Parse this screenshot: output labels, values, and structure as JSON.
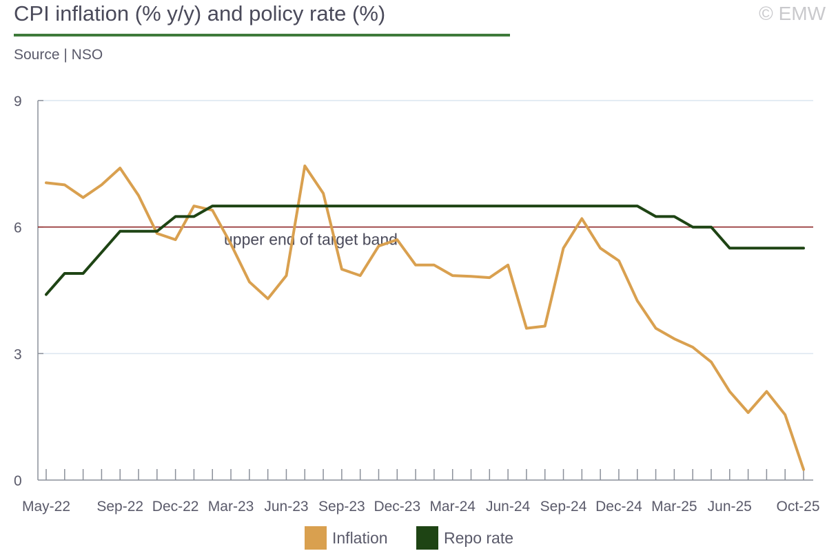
{
  "header": {
    "title": "CPI inflation (% y/y) and policy rate (%)",
    "source": "Source | NSO",
    "copyright": "© EMW"
  },
  "colors": {
    "inflation": "#d9a04f",
    "repo": "#1e4414",
    "target_line": "#8b1a1a",
    "grid": "#dce6f0",
    "axis": "#8a8f99",
    "title_rule": "#3e7a3a"
  },
  "chart_data": {
    "type": "line",
    "title": "CPI inflation (% y/y) and policy rate (%)",
    "xlabel": "",
    "ylabel": "",
    "ylim": [
      0,
      9
    ],
    "yticks": [
      0,
      3,
      6,
      9
    ],
    "grid": true,
    "x": [
      "May-22",
      "Jun-22",
      "Jul-22",
      "Aug-22",
      "Sep-22",
      "Oct-22",
      "Nov-22",
      "Dec-22",
      "Jan-23",
      "Feb-23",
      "Mar-23",
      "Apr-23",
      "May-23",
      "Jun-23",
      "Jul-23",
      "Aug-23",
      "Sep-23",
      "Oct-23",
      "Nov-23",
      "Dec-23",
      "Jan-24",
      "Feb-24",
      "Mar-24",
      "Apr-24",
      "May-24",
      "Jun-24",
      "Jul-24",
      "Aug-24",
      "Sep-24",
      "Oct-24",
      "Nov-24",
      "Dec-24",
      "Jan-25",
      "Feb-25",
      "Mar-25",
      "Apr-25",
      "May-25",
      "Jun-25",
      "Jul-25",
      "Aug-25",
      "Sep-25",
      "Oct-25"
    ],
    "x_tick_labels": [
      {
        "label": "May-22",
        "index": 0
      },
      {
        "label": "Sep-22",
        "index": 4
      },
      {
        "label": "Dec-22",
        "index": 7
      },
      {
        "label": "Mar-23",
        "index": 10
      },
      {
        "label": "Jun-23",
        "index": 13
      },
      {
        "label": "Sep-23",
        "index": 16
      },
      {
        "label": "Dec-23",
        "index": 19
      },
      {
        "label": "Mar-24",
        "index": 22
      },
      {
        "label": "Jun-24",
        "index": 25
      },
      {
        "label": "Sep-24",
        "index": 28
      },
      {
        "label": "Dec-24",
        "index": 31
      },
      {
        "label": "Mar-25",
        "index": 34
      },
      {
        "label": "Jun-25",
        "index": 37
      },
      {
        "label": "Oct-25",
        "index": 41
      }
    ],
    "series": [
      {
        "name": "Inflation",
        "values": [
          7.05,
          7.0,
          6.7,
          7.0,
          7.4,
          6.75,
          5.85,
          5.7,
          6.5,
          6.4,
          5.6,
          4.7,
          4.3,
          4.85,
          7.45,
          6.8,
          5.0,
          4.85,
          5.55,
          5.7,
          5.1,
          5.1,
          4.85,
          4.83,
          4.8,
          5.1,
          3.6,
          3.65,
          5.5,
          6.2,
          5.5,
          5.2,
          4.25,
          3.6,
          3.35,
          3.15,
          2.8,
          2.1,
          1.6,
          2.1,
          1.55,
          0.25
        ]
      },
      {
        "name": "Repo rate",
        "values": [
          4.4,
          4.9,
          4.9,
          5.4,
          5.9,
          5.9,
          5.9,
          6.25,
          6.25,
          6.5,
          6.5,
          6.5,
          6.5,
          6.5,
          6.5,
          6.5,
          6.5,
          6.5,
          6.5,
          6.5,
          6.5,
          6.5,
          6.5,
          6.5,
          6.5,
          6.5,
          6.5,
          6.5,
          6.5,
          6.5,
          6.5,
          6.5,
          6.5,
          6.25,
          6.25,
          6.0,
          6.0,
          5.5,
          5.5,
          5.5,
          5.5,
          5.5
        ]
      }
    ],
    "reference_lines": [
      {
        "value": 6,
        "label": "upper end of target band"
      }
    ],
    "legend": [
      "Inflation",
      "Repo rate"
    ],
    "legend_position": "bottom"
  }
}
